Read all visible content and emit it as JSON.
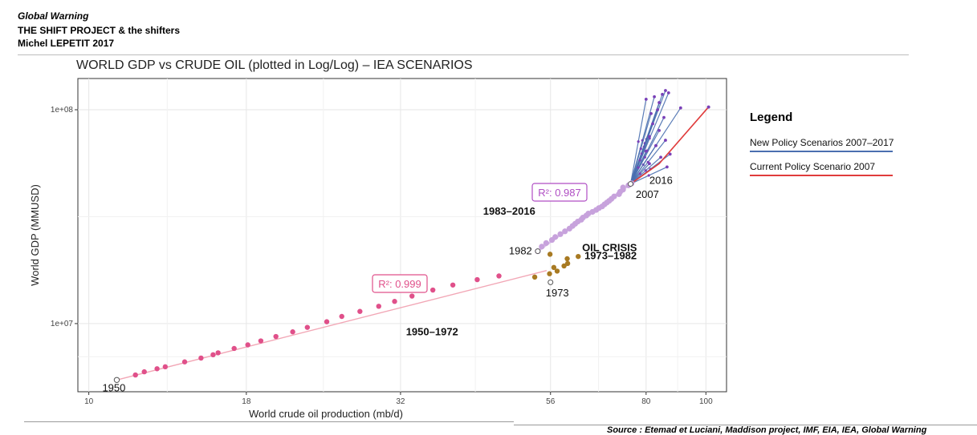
{
  "header": {
    "line1": "Global Warning",
    "line2": "THE SHIFT PROJECT & the shifters",
    "line3": "Michel LEPETIT 2017"
  },
  "source": "Source : Etemad et Luciani, Maddison project, IMF, EIA, IEA, Global Warning",
  "colors": {
    "pink": "#e0508a",
    "pink_line": "#f2a7b6",
    "brown": "#a87a22",
    "lilac": "#c7a2dc",
    "purple": "#7a40b8",
    "blue": "#4a6fb0",
    "red": "#e03b3b"
  },
  "chart_data": {
    "type": "scatter",
    "title": "WORLD GDP vs CRUDE OIL (plotted in Log/Log) – IEA SCENARIOS",
    "xlabel": "World crude oil production (mb/d)",
    "ylabel": "World GDP (MMUSD)",
    "x_scale": "log",
    "y_scale": "log",
    "xlim": [
      9.6,
      108
    ],
    "ylim": [
      4800000,
      140000000
    ],
    "x_ticks": [
      10,
      18,
      32,
      56,
      80,
      100
    ],
    "y_ticks": [
      {
        "value": 10000000,
        "label": "1e+07"
      },
      {
        "value": 100000000,
        "label": "1e+08"
      }
    ],
    "grid": true,
    "legend": {
      "title": "Legend",
      "position": "right",
      "entries": [
        {
          "label": "New Policy Scenarios 2007–2017",
          "color": "#4a6fb0"
        },
        {
          "label": "Current Policy Scenario 2007",
          "color": "#e03b3b"
        }
      ]
    },
    "series": [
      {
        "name": "1950–1972",
        "color": "#e0508a",
        "fit_r2": "0.999",
        "points": [
          [
            11.1,
            5450000
          ],
          [
            11.9,
            5750000
          ],
          [
            12.3,
            5950000
          ],
          [
            12.9,
            6150000
          ],
          [
            13.3,
            6280000
          ],
          [
            14.3,
            6620000
          ],
          [
            15.2,
            6900000
          ],
          [
            15.9,
            7150000
          ],
          [
            16.2,
            7300000
          ],
          [
            17.2,
            7650000
          ],
          [
            18.1,
            7950000
          ],
          [
            19.0,
            8300000
          ],
          [
            20.1,
            8700000
          ],
          [
            21.4,
            9150000
          ],
          [
            22.6,
            9600000
          ],
          [
            24.3,
            10200000
          ],
          [
            25.7,
            10800000
          ],
          [
            27.5,
            11400000
          ],
          [
            29.5,
            12050000
          ],
          [
            31.3,
            12700000
          ],
          [
            33.4,
            13450000
          ],
          [
            36.1,
            14350000
          ],
          [
            38.9,
            15150000
          ],
          [
            42.6,
            16050000
          ],
          [
            46.2,
            16700000
          ]
        ]
      },
      {
        "name": "OIL CRISIS 1973–1982",
        "color": "#a87a22",
        "points": [
          [
            52.8,
            16500000
          ],
          [
            55.8,
            17100000
          ],
          [
            56.7,
            18300000
          ],
          [
            59.7,
            19100000
          ],
          [
            59.6,
            20100000
          ],
          [
            55.9,
            21100000
          ],
          [
            57.4,
            17600000
          ],
          [
            58.9,
            18600000
          ],
          [
            62.1,
            20600000
          ]
        ]
      },
      {
        "name": "1983–2016",
        "color": "#c7a2dc",
        "fit_r2": "0.987",
        "points": [
          [
            53.4,
            21800000
          ],
          [
            54.2,
            22900000
          ],
          [
            55.1,
            23800000
          ],
          [
            56.3,
            24600000
          ],
          [
            57.0,
            25400000
          ],
          [
            58.1,
            26200000
          ],
          [
            59.1,
            27000000
          ],
          [
            60.1,
            27800000
          ],
          [
            60.8,
            28600000
          ],
          [
            61.4,
            29300000
          ],
          [
            62.0,
            30000000
          ],
          [
            62.8,
            30600000
          ],
          [
            63.2,
            31300000
          ],
          [
            64.0,
            32000000
          ],
          [
            64.5,
            32700000
          ],
          [
            65.5,
            33300000
          ],
          [
            66.4,
            34000000
          ],
          [
            67.1,
            34700000
          ],
          [
            67.9,
            35300000
          ],
          [
            68.5,
            36100000
          ],
          [
            69.1,
            36800000
          ],
          [
            69.7,
            37500000
          ],
          [
            70.3,
            38300000
          ],
          [
            71.0,
            39300000
          ],
          [
            72.3,
            40300000
          ],
          [
            72.6,
            41300000
          ],
          [
            73.4,
            42300000
          ],
          [
            73.4,
            43300000
          ],
          [
            74.9,
            44300000
          ],
          [
            75.8,
            45300000
          ]
        ]
      }
    ],
    "scenarios": {
      "start": [
        75.5,
        45000000
      ],
      "new_policy_ends": [
        [
          80.0,
          112000000
        ],
        [
          82.5,
          115000000
        ],
        [
          85.0,
          118000000
        ],
        [
          86.0,
          123000000
        ],
        [
          87.0,
          120000000
        ],
        [
          84.0,
          108000000
        ],
        [
          83.5,
          100000000
        ],
        [
          81.5,
          96000000
        ],
        [
          85.5,
          92000000
        ],
        [
          82.0,
          86000000
        ],
        [
          84.0,
          80000000
        ],
        [
          81.0,
          75000000
        ],
        [
          86.0,
          72000000
        ],
        [
          83.0,
          68000000
        ],
        [
          80.0,
          64000000
        ],
        [
          84.5,
          60000000
        ],
        [
          81.0,
          56000000
        ],
        [
          91.0,
          102000000
        ],
        [
          87.5,
          62000000
        ],
        [
          86.5,
          54000000
        ]
      ],
      "current_policy": [
        [
          75.5,
          45000000
        ],
        [
          84.0,
          56000000
        ],
        [
          101.0,
          103000000
        ]
      ]
    },
    "annotations": [
      {
        "text": "1950",
        "x": 11.1,
        "y": 5450000,
        "style": "plain"
      },
      {
        "text": "1950–1972",
        "x": 36.0,
        "y": 8800000,
        "style": "bold"
      },
      {
        "text": "1973",
        "x": 56.0,
        "y": 15100000,
        "style": "plain"
      },
      {
        "text": "1982",
        "x": 53.4,
        "y": 21800000,
        "style": "plain"
      },
      {
        "text": "OIL CRISIS",
        "x": 63.0,
        "y": 21800000,
        "style": "bold"
      },
      {
        "text": "1973–1982",
        "x": 63.0,
        "y": 20000000,
        "style": "bold"
      },
      {
        "text": "1983–2016",
        "x": 48.0,
        "y": 32300000,
        "style": "bold"
      },
      {
        "text": "2007",
        "x": 76.5,
        "y": 43000000,
        "style": "plain"
      },
      {
        "text": "2016",
        "x": 80.5,
        "y": 50000000,
        "style": "plain"
      }
    ],
    "r2_labels": [
      {
        "text": "R²: 0.999",
        "color": "#e0508a"
      },
      {
        "text": "R²: 0.987",
        "color": "#b04ec4"
      }
    ]
  }
}
